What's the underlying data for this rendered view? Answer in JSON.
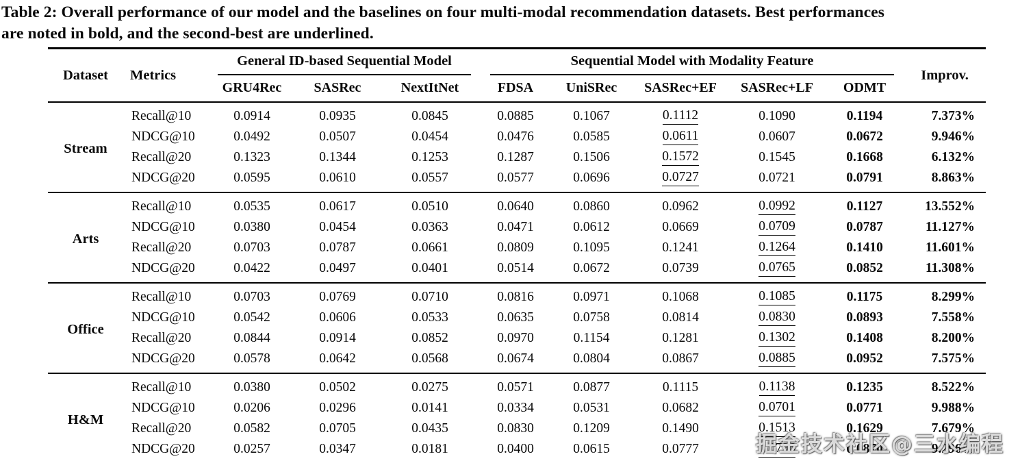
{
  "caption": {
    "line1": "Table 2: Overall performance of our model and the baselines on four multi-modal recommendation datasets. Best performances",
    "line2": "are noted in bold, and the second-best are underlined."
  },
  "table": {
    "headers": {
      "dataset": "Dataset",
      "metrics": "Metrics",
      "group1": "General ID-based Sequential Model",
      "group2": "Sequential Model with Modality Feature",
      "improv": "Improv.",
      "models": [
        "GRU4Rec",
        "SASRec",
        "NextItNet",
        "FDSA",
        "UniSRec",
        "SASRec+EF",
        "SASRec+LF",
        "ODMT"
      ]
    },
    "groups": [
      {
        "dataset": "Stream",
        "rows": [
          {
            "metric": "Recall@10",
            "values": [
              "0.0914",
              "0.0935",
              "0.0845",
              "0.0885",
              "0.1067",
              "0.1112",
              "0.1090",
              "0.1194"
            ],
            "improv": "7.373%",
            "underline_col": 5,
            "bold_col": 7
          },
          {
            "metric": "NDCG@10",
            "values": [
              "0.0492",
              "0.0507",
              "0.0454",
              "0.0476",
              "0.0585",
              "0.0611",
              "0.0607",
              "0.0672"
            ],
            "improv": "9.946%",
            "underline_col": 5,
            "bold_col": 7
          },
          {
            "metric": "Recall@20",
            "values": [
              "0.1323",
              "0.1344",
              "0.1253",
              "0.1287",
              "0.1506",
              "0.1572",
              "0.1545",
              "0.1668"
            ],
            "improv": "6.132%",
            "underline_col": 5,
            "bold_col": 7
          },
          {
            "metric": "NDCG@20",
            "values": [
              "0.0595",
              "0.0610",
              "0.0557",
              "0.0577",
              "0.0696",
              "0.0727",
              "0.0721",
              "0.0791"
            ],
            "improv": "8.863%",
            "underline_col": 5,
            "bold_col": 7
          }
        ]
      },
      {
        "dataset": "Arts",
        "rows": [
          {
            "metric": "Recall@10",
            "values": [
              "0.0535",
              "0.0617",
              "0.0510",
              "0.0640",
              "0.0860",
              "0.0962",
              "0.0992",
              "0.1127"
            ],
            "improv": "13.552%",
            "underline_col": 6,
            "bold_col": 7
          },
          {
            "metric": "NDCG@10",
            "values": [
              "0.0380",
              "0.0454",
              "0.0363",
              "0.0471",
              "0.0612",
              "0.0669",
              "0.0709",
              "0.0787"
            ],
            "improv": "11.127%",
            "underline_col": 6,
            "bold_col": 7
          },
          {
            "metric": "Recall@20",
            "values": [
              "0.0703",
              "0.0787",
              "0.0661",
              "0.0809",
              "0.1095",
              "0.1241",
              "0.1264",
              "0.1410"
            ],
            "improv": "11.601%",
            "underline_col": 6,
            "bold_col": 7
          },
          {
            "metric": "NDCG@20",
            "values": [
              "0.0422",
              "0.0497",
              "0.0401",
              "0.0514",
              "0.0672",
              "0.0739",
              "0.0765",
              "0.0852"
            ],
            "improv": "11.308%",
            "underline_col": 6,
            "bold_col": 7
          }
        ]
      },
      {
        "dataset": "Office",
        "rows": [
          {
            "metric": "Recall@10",
            "values": [
              "0.0703",
              "0.0769",
              "0.0710",
              "0.0816",
              "0.0971",
              "0.1068",
              "0.1085",
              "0.1175"
            ],
            "improv": "8.299%",
            "underline_col": 6,
            "bold_col": 7
          },
          {
            "metric": "NDCG@10",
            "values": [
              "0.0542",
              "0.0606",
              "0.0533",
              "0.0635",
              "0.0758",
              "0.0814",
              "0.0830",
              "0.0893"
            ],
            "improv": "7.558%",
            "underline_col": 6,
            "bold_col": 7
          },
          {
            "metric": "Recall@20",
            "values": [
              "0.0844",
              "0.0914",
              "0.0852",
              "0.0970",
              "0.1154",
              "0.1281",
              "0.1302",
              "0.1408"
            ],
            "improv": "8.200%",
            "underline_col": 6,
            "bold_col": 7
          },
          {
            "metric": "NDCG@20",
            "values": [
              "0.0578",
              "0.0642",
              "0.0568",
              "0.0674",
              "0.0804",
              "0.0867",
              "0.0885",
              "0.0952"
            ],
            "improv": "7.575%",
            "underline_col": 6,
            "bold_col": 7
          }
        ]
      },
      {
        "dataset": "H&M",
        "rows": [
          {
            "metric": "Recall@10",
            "values": [
              "0.0380",
              "0.0502",
              "0.0275",
              "0.0571",
              "0.0877",
              "0.1115",
              "0.1138",
              "0.1235"
            ],
            "improv": "8.522%",
            "underline_col": 6,
            "bold_col": 7
          },
          {
            "metric": "NDCG@10",
            "values": [
              "0.0206",
              "0.0296",
              "0.0141",
              "0.0334",
              "0.0531",
              "0.0682",
              "0.0701",
              "0.0771"
            ],
            "improv": "9.988%",
            "underline_col": 6,
            "bold_col": 7
          },
          {
            "metric": "Recall@20",
            "values": [
              "0.0582",
              "0.0705",
              "0.0435",
              "0.0830",
              "0.1209",
              "0.1490",
              "0.1513",
              "0.1629"
            ],
            "improv": "7.679%",
            "underline_col": 6,
            "bold_col": 7
          },
          {
            "metric": "NDCG@20",
            "values": [
              "0.0257",
              "0.0347",
              "0.0181",
              "0.0400",
              "0.0615",
              "0.0777",
              "0.0796",
              "0.0870"
            ],
            "improv": "9.296%",
            "underline_col": 6,
            "bold_col": 7
          }
        ]
      }
    ]
  },
  "watermark": "掘金技术社区@三水编程"
}
